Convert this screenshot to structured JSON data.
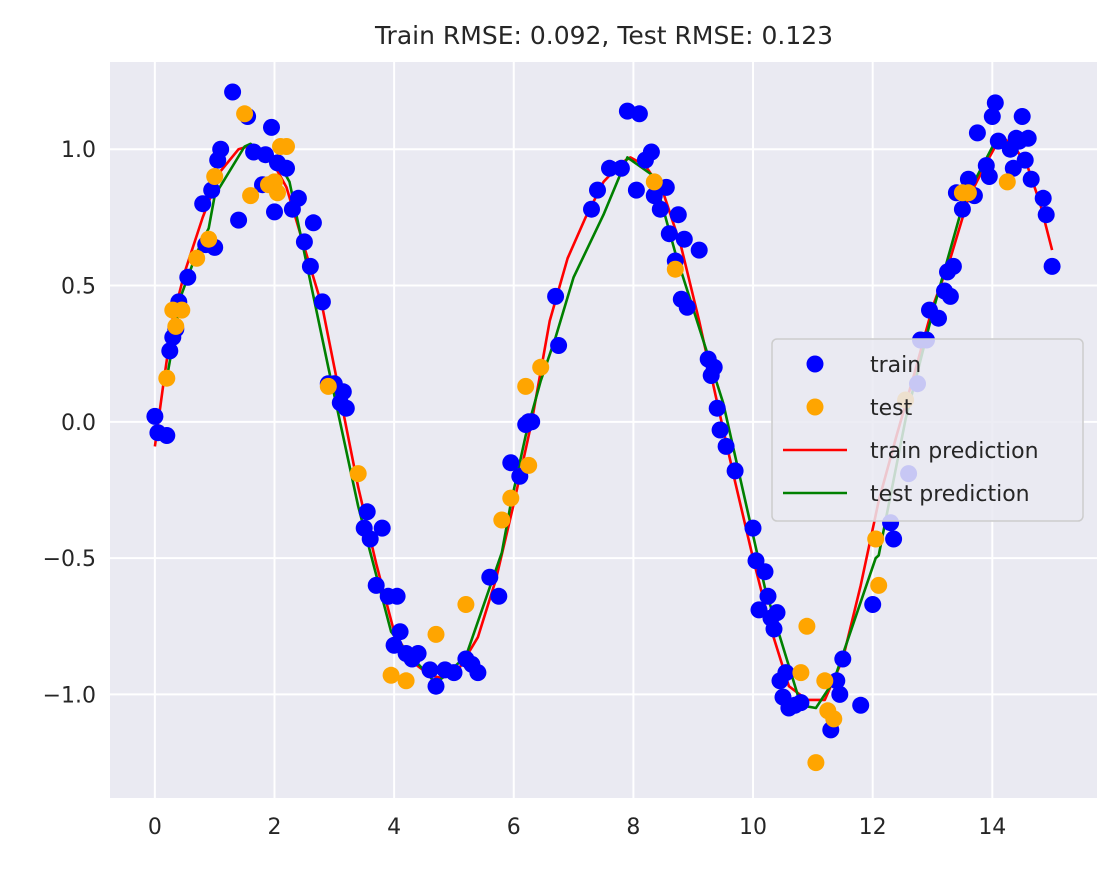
{
  "chart_data": {
    "type": "scatter",
    "title": "Train RMSE: 0.092, Test RMSE: 0.123",
    "xlabel": "",
    "ylabel": "",
    "xlim": [
      -0.75,
      15.75
    ],
    "ylim": [
      -1.38,
      1.32
    ],
    "x_ticks": [
      0,
      2,
      4,
      6,
      8,
      10,
      12,
      14
    ],
    "y_ticks": [
      1.0,
      0.5,
      0.0,
      -0.5,
      -1.0
    ],
    "x_tick_labels": [
      "0",
      "2",
      "4",
      "6",
      "8",
      "10",
      "12",
      "14"
    ],
    "y_tick_labels": [
      "1.0",
      "0.5",
      "0.0",
      "−0.5",
      "−1.0"
    ],
    "grid": true,
    "legend_position": "center right",
    "colors": {
      "background": "#eaeaf2",
      "grid": "#ffffff",
      "train": "#0000ff",
      "test": "#ffa500",
      "train_prediction": "#ff0000",
      "test_prediction": "#008000"
    },
    "legend": [
      {
        "label": "train",
        "kind": "marker",
        "color_key": "train"
      },
      {
        "label": "test",
        "kind": "marker",
        "color_key": "test"
      },
      {
        "label": "train prediction",
        "kind": "line",
        "color_key": "train_prediction"
      },
      {
        "label": "test prediction",
        "kind": "line",
        "color_key": "test_prediction"
      }
    ],
    "series": [
      {
        "name": "train",
        "type": "scatter",
        "color_key": "train",
        "points": [
          [
            0.0,
            0.02
          ],
          [
            0.05,
            -0.04
          ],
          [
            0.2,
            -0.05
          ],
          [
            0.25,
            0.26
          ],
          [
            0.3,
            0.31
          ],
          [
            0.35,
            0.34
          ],
          [
            0.4,
            0.44
          ],
          [
            0.55,
            0.53
          ],
          [
            0.8,
            0.8
          ],
          [
            0.85,
            0.65
          ],
          [
            0.95,
            0.85
          ],
          [
            1.0,
            0.64
          ],
          [
            1.05,
            0.96
          ],
          [
            1.1,
            1.0
          ],
          [
            1.3,
            1.21
          ],
          [
            1.4,
            0.74
          ],
          [
            1.55,
            1.12
          ],
          [
            1.65,
            0.99
          ],
          [
            1.8,
            0.87
          ],
          [
            1.85,
            0.98
          ],
          [
            1.95,
            1.08
          ],
          [
            2.0,
            0.77
          ],
          [
            2.05,
            0.95
          ],
          [
            2.2,
            0.93
          ],
          [
            2.3,
            0.78
          ],
          [
            2.4,
            0.82
          ],
          [
            2.5,
            0.66
          ],
          [
            2.6,
            0.57
          ],
          [
            2.65,
            0.73
          ],
          [
            2.8,
            0.44
          ],
          [
            2.9,
            0.14
          ],
          [
            3.0,
            0.14
          ],
          [
            3.1,
            0.07
          ],
          [
            3.15,
            0.11
          ],
          [
            3.2,
            0.05
          ],
          [
            3.5,
            -0.39
          ],
          [
            3.55,
            -0.33
          ],
          [
            3.6,
            -0.43
          ],
          [
            3.7,
            -0.6
          ],
          [
            3.8,
            -0.39
          ],
          [
            3.9,
            -0.64
          ],
          [
            4.0,
            -0.82
          ],
          [
            4.05,
            -0.64
          ],
          [
            4.1,
            -0.77
          ],
          [
            4.2,
            -0.85
          ],
          [
            4.3,
            -0.87
          ],
          [
            4.4,
            -0.85
          ],
          [
            4.6,
            -0.91
          ],
          [
            4.7,
            -0.97
          ],
          [
            4.85,
            -0.91
          ],
          [
            5.0,
            -0.92
          ],
          [
            5.2,
            -0.87
          ],
          [
            5.3,
            -0.89
          ],
          [
            5.4,
            -0.92
          ],
          [
            5.6,
            -0.57
          ],
          [
            5.75,
            -0.64
          ],
          [
            5.95,
            -0.15
          ],
          [
            6.1,
            -0.2
          ],
          [
            6.2,
            -0.01
          ],
          [
            6.25,
            0.0
          ],
          [
            6.3,
            0.0
          ],
          [
            6.7,
            0.46
          ],
          [
            6.75,
            0.28
          ],
          [
            7.3,
            0.78
          ],
          [
            7.4,
            0.85
          ],
          [
            7.6,
            0.93
          ],
          [
            7.8,
            0.93
          ],
          [
            7.9,
            1.14
          ],
          [
            8.05,
            0.85
          ],
          [
            8.1,
            1.13
          ],
          [
            8.2,
            0.96
          ],
          [
            8.3,
            0.99
          ],
          [
            8.35,
            0.83
          ],
          [
            8.45,
            0.78
          ],
          [
            8.55,
            0.86
          ],
          [
            8.6,
            0.69
          ],
          [
            8.7,
            0.59
          ],
          [
            8.75,
            0.76
          ],
          [
            8.8,
            0.45
          ],
          [
            8.85,
            0.67
          ],
          [
            8.9,
            0.42
          ],
          [
            9.1,
            0.63
          ],
          [
            9.25,
            0.23
          ],
          [
            9.3,
            0.17
          ],
          [
            9.35,
            0.2
          ],
          [
            9.4,
            0.05
          ],
          [
            9.45,
            -0.03
          ],
          [
            9.55,
            -0.09
          ],
          [
            9.7,
            -0.18
          ],
          [
            10.0,
            -0.39
          ],
          [
            10.05,
            -0.51
          ],
          [
            10.1,
            -0.69
          ],
          [
            10.2,
            -0.55
          ],
          [
            10.25,
            -0.64
          ],
          [
            10.3,
            -0.72
          ],
          [
            10.35,
            -0.76
          ],
          [
            10.4,
            -0.7
          ],
          [
            10.45,
            -0.95
          ],
          [
            10.5,
            -1.01
          ],
          [
            10.55,
            -0.92
          ],
          [
            10.6,
            -1.05
          ],
          [
            10.7,
            -1.04
          ],
          [
            10.8,
            -1.03
          ],
          [
            11.3,
            -1.13
          ],
          [
            11.4,
            -0.95
          ],
          [
            11.45,
            -1.0
          ],
          [
            11.5,
            -0.87
          ],
          [
            11.8,
            -1.04
          ],
          [
            12.0,
            -0.67
          ],
          [
            12.3,
            -0.37
          ],
          [
            12.35,
            -0.43
          ],
          [
            12.6,
            -0.19
          ],
          [
            12.75,
            0.14
          ],
          [
            12.8,
            0.3
          ],
          [
            12.9,
            0.3
          ],
          [
            12.95,
            0.41
          ],
          [
            13.1,
            0.38
          ],
          [
            13.2,
            0.48
          ],
          [
            13.25,
            0.55
          ],
          [
            13.3,
            0.46
          ],
          [
            13.35,
            0.57
          ],
          [
            13.4,
            0.84
          ],
          [
            13.5,
            0.78
          ],
          [
            13.6,
            0.89
          ],
          [
            13.7,
            0.83
          ],
          [
            13.75,
            1.06
          ],
          [
            13.9,
            0.94
          ],
          [
            13.95,
            0.9
          ],
          [
            14.0,
            1.12
          ],
          [
            14.05,
            1.17
          ],
          [
            14.1,
            1.03
          ],
          [
            14.3,
            1.0
          ],
          [
            14.35,
            0.93
          ],
          [
            14.4,
            1.04
          ],
          [
            14.45,
            1.03
          ],
          [
            14.5,
            1.12
          ],
          [
            14.55,
            0.96
          ],
          [
            14.6,
            1.04
          ],
          [
            14.65,
            0.89
          ],
          [
            14.85,
            0.82
          ],
          [
            14.9,
            0.76
          ],
          [
            15.0,
            0.57
          ]
        ]
      },
      {
        "name": "test",
        "type": "scatter",
        "color_key": "test",
        "points": [
          [
            0.2,
            0.16
          ],
          [
            0.3,
            0.41
          ],
          [
            0.35,
            0.35
          ],
          [
            0.45,
            0.41
          ],
          [
            0.7,
            0.6
          ],
          [
            0.9,
            0.67
          ],
          [
            1.0,
            0.9
          ],
          [
            1.5,
            1.13
          ],
          [
            1.6,
            0.83
          ],
          [
            1.9,
            0.87
          ],
          [
            2.0,
            0.88
          ],
          [
            2.05,
            0.84
          ],
          [
            2.1,
            1.01
          ],
          [
            2.2,
            1.01
          ],
          [
            2.9,
            0.13
          ],
          [
            3.4,
            -0.19
          ],
          [
            3.95,
            -0.93
          ],
          [
            4.2,
            -0.95
          ],
          [
            4.7,
            -0.78
          ],
          [
            5.2,
            -0.67
          ],
          [
            5.8,
            -0.36
          ],
          [
            5.95,
            -0.28
          ],
          [
            6.2,
            0.13
          ],
          [
            6.25,
            -0.16
          ],
          [
            6.45,
            0.2
          ],
          [
            8.35,
            0.88
          ],
          [
            8.7,
            0.56
          ],
          [
            10.8,
            -0.92
          ],
          [
            10.9,
            -0.75
          ],
          [
            11.05,
            -1.25
          ],
          [
            11.2,
            -0.95
          ],
          [
            11.25,
            -1.06
          ],
          [
            11.35,
            -1.09
          ],
          [
            12.05,
            -0.43
          ],
          [
            12.1,
            -0.6
          ],
          [
            12.55,
            0.08
          ],
          [
            13.5,
            0.84
          ],
          [
            13.6,
            0.84
          ],
          [
            14.25,
            0.88
          ]
        ]
      },
      {
        "name": "train prediction",
        "type": "line",
        "color_key": "train_prediction",
        "points": [
          [
            0.0,
            -0.09
          ],
          [
            0.15,
            0.15
          ],
          [
            0.3,
            0.38
          ],
          [
            0.5,
            0.55
          ],
          [
            0.8,
            0.75
          ],
          [
            1.1,
            0.92
          ],
          [
            1.4,
            1.0
          ],
          [
            1.55,
            1.01
          ],
          [
            1.8,
            0.98
          ],
          [
            2.0,
            0.94
          ],
          [
            2.2,
            0.86
          ],
          [
            2.5,
            0.64
          ],
          [
            2.8,
            0.42
          ],
          [
            3.1,
            0.09
          ],
          [
            3.4,
            -0.24
          ],
          [
            3.7,
            -0.52
          ],
          [
            4.0,
            -0.77
          ],
          [
            4.3,
            -0.88
          ],
          [
            4.6,
            -0.93
          ],
          [
            4.8,
            -0.94
          ],
          [
            5.1,
            -0.9
          ],
          [
            5.4,
            -0.79
          ],
          [
            5.7,
            -0.58
          ],
          [
            6.0,
            -0.3
          ],
          [
            6.3,
            0.0
          ],
          [
            6.6,
            0.37
          ],
          [
            6.9,
            0.6
          ],
          [
            7.2,
            0.75
          ],
          [
            7.5,
            0.88
          ],
          [
            7.8,
            0.95
          ],
          [
            7.95,
            0.97
          ],
          [
            8.2,
            0.94
          ],
          [
            8.5,
            0.84
          ],
          [
            8.8,
            0.64
          ],
          [
            9.1,
            0.37
          ],
          [
            9.4,
            0.07
          ],
          [
            9.7,
            -0.22
          ],
          [
            10.0,
            -0.5
          ],
          [
            10.3,
            -0.76
          ],
          [
            10.6,
            -0.97
          ],
          [
            10.9,
            -1.02
          ],
          [
            11.2,
            -1.02
          ],
          [
            11.5,
            -0.87
          ],
          [
            11.8,
            -0.6
          ],
          [
            12.1,
            -0.29
          ],
          [
            12.4,
            -0.05
          ],
          [
            12.7,
            0.18
          ],
          [
            13.0,
            0.42
          ],
          [
            13.3,
            0.6
          ],
          [
            13.6,
            0.82
          ],
          [
            13.9,
            0.95
          ],
          [
            14.15,
            1.05
          ],
          [
            14.4,
            1.0
          ],
          [
            14.6,
            0.93
          ],
          [
            14.8,
            0.8
          ],
          [
            15.0,
            0.63
          ]
        ]
      },
      {
        "name": "test prediction",
        "type": "line",
        "color_key": "test_prediction",
        "points": [
          [
            0.2,
            0.16
          ],
          [
            0.45,
            0.47
          ],
          [
            0.7,
            0.62
          ],
          [
            0.9,
            0.71
          ],
          [
            1.0,
            0.83
          ],
          [
            1.5,
            1.01
          ],
          [
            1.6,
            1.02
          ],
          [
            1.9,
            0.96
          ],
          [
            2.1,
            0.94
          ],
          [
            2.25,
            0.88
          ],
          [
            2.9,
            0.2
          ],
          [
            3.4,
            -0.31
          ],
          [
            3.95,
            -0.77
          ],
          [
            4.2,
            -0.84
          ],
          [
            4.7,
            -0.96
          ],
          [
            5.2,
            -0.86
          ],
          [
            5.8,
            -0.48
          ],
          [
            5.95,
            -0.3
          ],
          [
            6.2,
            -0.05
          ],
          [
            6.45,
            0.15
          ],
          [
            6.7,
            0.31
          ],
          [
            7.0,
            0.53
          ],
          [
            7.5,
            0.76
          ],
          [
            7.9,
            0.97
          ],
          [
            8.35,
            0.9
          ],
          [
            8.7,
            0.62
          ],
          [
            9.5,
            0.07
          ],
          [
            10.2,
            -0.61
          ],
          [
            10.8,
            -1.04
          ],
          [
            11.05,
            -1.05
          ],
          [
            11.35,
            -0.95
          ],
          [
            12.05,
            -0.5
          ],
          [
            12.1,
            -0.49
          ],
          [
            12.55,
            0.01
          ],
          [
            13.0,
            0.4
          ],
          [
            13.5,
            0.79
          ],
          [
            13.6,
            0.84
          ],
          [
            14.1,
            1.05
          ],
          [
            14.25,
            1.02
          ]
        ]
      }
    ]
  }
}
